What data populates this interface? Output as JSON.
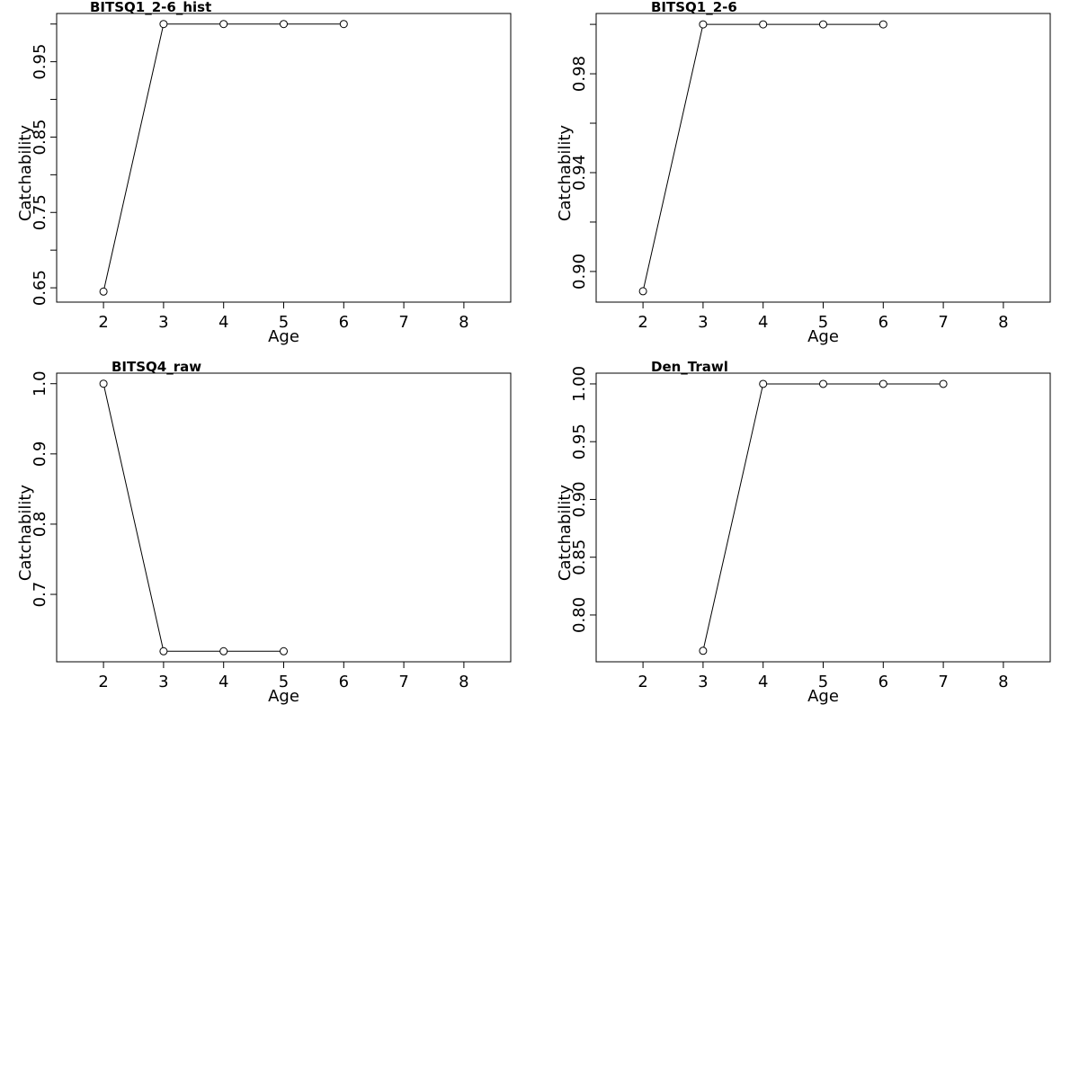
{
  "chart_data": [
    {
      "type": "line",
      "title": "BITSQ1_2-6_hist",
      "x_label": "Age",
      "y_label": "Catchability",
      "x": [
        2,
        3,
        4,
        5,
        6
      ],
      "values": [
        0.645,
        1,
        1,
        1,
        1
      ],
      "xlim": [
        1.22,
        8.78
      ],
      "xticks": [
        2,
        3,
        4,
        5,
        6,
        7,
        8
      ],
      "ylim": [
        0.631,
        1.014
      ],
      "yticks": [
        0.65,
        0.75,
        0.85,
        0.95
      ],
      "yminor": [
        0.7,
        0.8,
        0.9,
        1.0
      ]
    },
    {
      "type": "line",
      "title": "BITSQ1_2-6",
      "x_label": "Age",
      "y_label": "Catchability",
      "x": [
        2,
        3,
        4,
        5,
        6
      ],
      "values": [
        0.892,
        1,
        1,
        1,
        1
      ],
      "xlim": [
        1.22,
        8.78
      ],
      "xticks": [
        2,
        3,
        4,
        5,
        6,
        7,
        8
      ],
      "ylim": [
        0.8876,
        1.0044
      ],
      "yticks": [
        {
          "value": 0.9,
          "label": "0.90"
        },
        0.94,
        0.98
      ],
      "yminor": [
        0.92,
        0.96,
        1.0
      ]
    },
    {
      "type": "line",
      "title": "BITSQ4_raw",
      "x_label": "Age",
      "y_label": "Catchability",
      "x": [
        2,
        3,
        4,
        5
      ],
      "values": [
        1,
        0.619,
        0.619,
        0.619
      ],
      "xlim": [
        1.22,
        8.78
      ],
      "xticks": [
        2,
        3,
        4,
        5,
        6,
        7,
        8
      ],
      "ylim": [
        0.604,
        1.015
      ],
      "yticks": [
        0.7,
        0.8,
        0.9,
        {
          "value": 1,
          "label": "1.0"
        }
      ]
    },
    {
      "type": "line",
      "title": "Den_Trawl",
      "x_label": "Age",
      "y_label": "Catchability",
      "x": [
        3,
        4,
        5,
        6,
        7
      ],
      "values": [
        0.769,
        1,
        1,
        1,
        1
      ],
      "xlim": [
        1.22,
        8.78
      ],
      "xticks": [
        2,
        3,
        4,
        5,
        6,
        7,
        8
      ],
      "ylim": [
        0.7595,
        1.0093
      ],
      "yticks": [
        {
          "value": 0.8,
          "label": "0.80"
        },
        0.85,
        {
          "value": 0.9,
          "label": "0.90"
        },
        0.95,
        {
          "value": 1,
          "label": "1.00"
        }
      ]
    }
  ]
}
